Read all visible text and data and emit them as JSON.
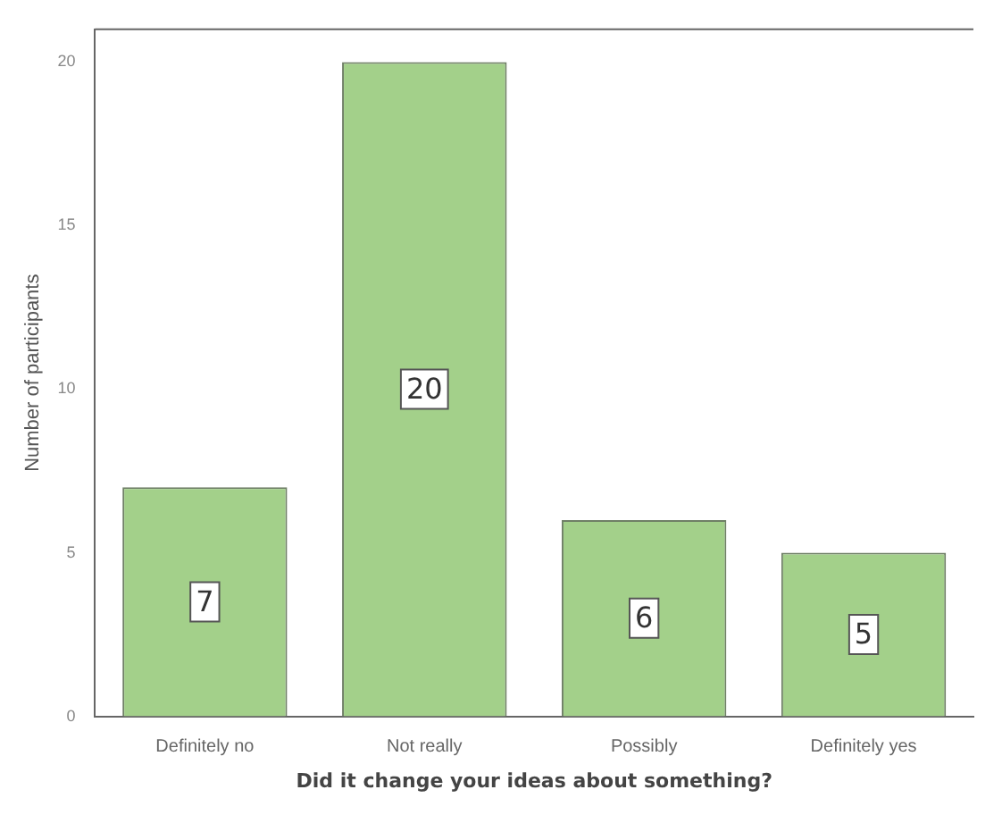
{
  "chart_data": {
    "type": "bar",
    "xlabel": "Did it change your ideas about something?",
    "ylabel": "Number of participants",
    "categories": [
      "Definitely no",
      "Not really",
      "Possibly",
      "Definitely yes"
    ],
    "values": [
      7,
      20,
      6,
      5
    ],
    "color": "#a3d08a",
    "ylim": [
      0,
      21
    ],
    "yticks": [
      0,
      5,
      10,
      15,
      20
    ],
    "grid": false,
    "legend": false,
    "data_labels": true
  }
}
